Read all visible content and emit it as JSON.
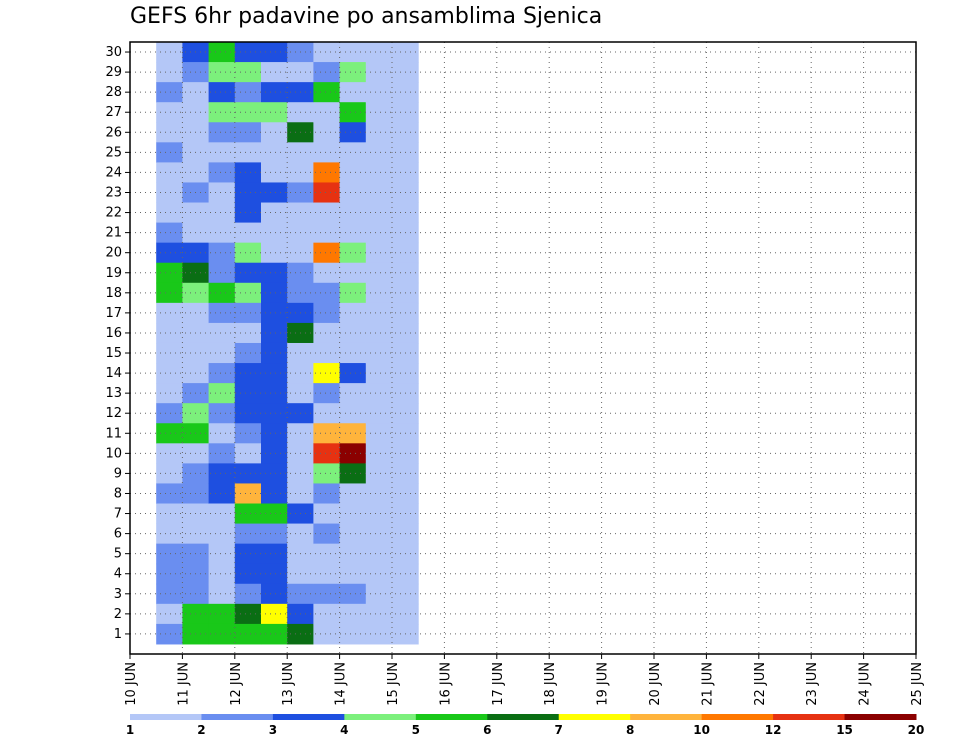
{
  "chart_data": {
    "type": "heatmap",
    "title": "GEFS 6hr padavine po ansamblima Sjenica",
    "xlabel": "",
    "ylabel": "",
    "y_members": [
      1,
      2,
      3,
      4,
      5,
      6,
      7,
      8,
      9,
      10,
      11,
      12,
      13,
      14,
      15,
      16,
      17,
      18,
      19,
      20,
      21,
      22,
      23,
      24,
      25,
      26,
      27,
      28,
      29,
      30
    ],
    "x_time_range_days": [
      0,
      15
    ],
    "x_step_hours": 6,
    "x_tick_labels": [
      "10 JUN",
      "11 JUN",
      "12 JUN",
      "13 JUN",
      "14 JUN",
      "15 JUN",
      "16 JUN",
      "17 JUN",
      "18 JUN",
      "19 JUN",
      "20 JUN",
      "21 JUN",
      "22 JUN",
      "23 JUN",
      "24 JUN",
      "25 JUN"
    ],
    "grid": true,
    "legend_placement": "bottom",
    "colorbar": {
      "labels": [
        "1",
        "2",
        "3",
        "4",
        "5",
        "6",
        "7",
        "8",
        "10",
        "12",
        "15",
        "20"
      ],
      "levels": [
        1,
        2,
        3,
        4,
        5,
        6,
        7,
        8,
        10,
        12,
        15,
        20
      ],
      "colors": [
        "#b4c7f7",
        "#6a8ef0",
        "#1e4fe0",
        "#7cf07c",
        "#19c819",
        "#0a6e14",
        "#ffff00",
        "#ffb43c",
        "#ff7800",
        "#e63212",
        "#8b0000"
      ]
    },
    "cells": [
      [
        1,
        30,
        1
      ],
      [
        1,
        29,
        1
      ],
      [
        1,
        28,
        2
      ],
      [
        1,
        27,
        1
      ],
      [
        1,
        26,
        1
      ],
      [
        1,
        25,
        2
      ],
      [
        1,
        24,
        1
      ],
      [
        1,
        23,
        1
      ],
      [
        1,
        22,
        1
      ],
      [
        1,
        21,
        2
      ],
      [
        1,
        20,
        3
      ],
      [
        1,
        19,
        5
      ],
      [
        1,
        18,
        5
      ],
      [
        1,
        17,
        1
      ],
      [
        1,
        16,
        1
      ],
      [
        1,
        15,
        1
      ],
      [
        1,
        14,
        1
      ],
      [
        1,
        13,
        1
      ],
      [
        1,
        12,
        2
      ],
      [
        1,
        11,
        5
      ],
      [
        1,
        10,
        1
      ],
      [
        1,
        9,
        1
      ],
      [
        1,
        8,
        2
      ],
      [
        1,
        7,
        1
      ],
      [
        1,
        6,
        1
      ],
      [
        1,
        5,
        2
      ],
      [
        1,
        4,
        2
      ],
      [
        1,
        3,
        2
      ],
      [
        1,
        2,
        1
      ],
      [
        1,
        1,
        2
      ],
      [
        2,
        30,
        3
      ],
      [
        2,
        29,
        2
      ],
      [
        2,
        28,
        1
      ],
      [
        2,
        27,
        1
      ],
      [
        2,
        26,
        1
      ],
      [
        2,
        25,
        1
      ],
      [
        2,
        24,
        1
      ],
      [
        2,
        23,
        2
      ],
      [
        2,
        22,
        1
      ],
      [
        2,
        21,
        1
      ],
      [
        2,
        20,
        3
      ],
      [
        2,
        19,
        6
      ],
      [
        2,
        18,
        4
      ],
      [
        2,
        17,
        1
      ],
      [
        2,
        16,
        1
      ],
      [
        2,
        15,
        1
      ],
      [
        2,
        14,
        1
      ],
      [
        2,
        13,
        2
      ],
      [
        2,
        12,
        4
      ],
      [
        2,
        11,
        5
      ],
      [
        2,
        10,
        1
      ],
      [
        2,
        9,
        2
      ],
      [
        2,
        8,
        2
      ],
      [
        2,
        7,
        1
      ],
      [
        2,
        6,
        1
      ],
      [
        2,
        5,
        2
      ],
      [
        2,
        4,
        2
      ],
      [
        2,
        3,
        2
      ],
      [
        2,
        2,
        5
      ],
      [
        2,
        1,
        5
      ],
      [
        3,
        30,
        5
      ],
      [
        3,
        29,
        4
      ],
      [
        3,
        28,
        3
      ],
      [
        3,
        27,
        4
      ],
      [
        3,
        26,
        2
      ],
      [
        3,
        25,
        1
      ],
      [
        3,
        24,
        2
      ],
      [
        3,
        23,
        1
      ],
      [
        3,
        22,
        1
      ],
      [
        3,
        21,
        1
      ],
      [
        3,
        20,
        2
      ],
      [
        3,
        19,
        2
      ],
      [
        3,
        18,
        5
      ],
      [
        3,
        17,
        2
      ],
      [
        3,
        16,
        1
      ],
      [
        3,
        15,
        1
      ],
      [
        3,
        14,
        2
      ],
      [
        3,
        13,
        4
      ],
      [
        3,
        12,
        2
      ],
      [
        3,
        11,
        1
      ],
      [
        3,
        10,
        2
      ],
      [
        3,
        9,
        3
      ],
      [
        3,
        8,
        3
      ],
      [
        3,
        7,
        1
      ],
      [
        3,
        6,
        1
      ],
      [
        3,
        5,
        1
      ],
      [
        3,
        4,
        1
      ],
      [
        3,
        3,
        1
      ],
      [
        3,
        2,
        5
      ],
      [
        3,
        1,
        5
      ],
      [
        4,
        30,
        3
      ],
      [
        4,
        29,
        4
      ],
      [
        4,
        28,
        2
      ],
      [
        4,
        27,
        4
      ],
      [
        4,
        26,
        2
      ],
      [
        4,
        25,
        1
      ],
      [
        4,
        24,
        3
      ],
      [
        4,
        23,
        3
      ],
      [
        4,
        22,
        3
      ],
      [
        4,
        21,
        1
      ],
      [
        4,
        20,
        4
      ],
      [
        4,
        19,
        3
      ],
      [
        4,
        18,
        4
      ],
      [
        4,
        17,
        2
      ],
      [
        4,
        16,
        1
      ],
      [
        4,
        15,
        2
      ],
      [
        4,
        14,
        3
      ],
      [
        4,
        13,
        3
      ],
      [
        4,
        12,
        3
      ],
      [
        4,
        11,
        2
      ],
      [
        4,
        10,
        1
      ],
      [
        4,
        9,
        3
      ],
      [
        4,
        8,
        8
      ],
      [
        4,
        7,
        5
      ],
      [
        4,
        6,
        2
      ],
      [
        4,
        5,
        3
      ],
      [
        4,
        4,
        3
      ],
      [
        4,
        3,
        2
      ],
      [
        4,
        2,
        6
      ],
      [
        4,
        1,
        5
      ],
      [
        5,
        30,
        3
      ],
      [
        5,
        29,
        1
      ],
      [
        5,
        28,
        3
      ],
      [
        5,
        27,
        4
      ],
      [
        5,
        26,
        1
      ],
      [
        5,
        25,
        1
      ],
      [
        5,
        24,
        1
      ],
      [
        5,
        23,
        3
      ],
      [
        5,
        22,
        1
      ],
      [
        5,
        21,
        1
      ],
      [
        5,
        20,
        1
      ],
      [
        5,
        19,
        3
      ],
      [
        5,
        18,
        3
      ],
      [
        5,
        17,
        3
      ],
      [
        5,
        16,
        3
      ],
      [
        5,
        15,
        3
      ],
      [
        5,
        14,
        3
      ],
      [
        5,
        13,
        3
      ],
      [
        5,
        12,
        3
      ],
      [
        5,
        11,
        3
      ],
      [
        5,
        10,
        3
      ],
      [
        5,
        9,
        3
      ],
      [
        5,
        8,
        3
      ],
      [
        5,
        7,
        5
      ],
      [
        5,
        6,
        2
      ],
      [
        5,
        5,
        3
      ],
      [
        5,
        4,
        3
      ],
      [
        5,
        3,
        3
      ],
      [
        5,
        2,
        7
      ],
      [
        5,
        1,
        5
      ],
      [
        6,
        30,
        2
      ],
      [
        6,
        29,
        1
      ],
      [
        6,
        28,
        3
      ],
      [
        6,
        27,
        1
      ],
      [
        6,
        26,
        6
      ],
      [
        6,
        25,
        1
      ],
      [
        6,
        24,
        1
      ],
      [
        6,
        23,
        2
      ],
      [
        6,
        22,
        1
      ],
      [
        6,
        21,
        1
      ],
      [
        6,
        20,
        1
      ],
      [
        6,
        19,
        2
      ],
      [
        6,
        18,
        2
      ],
      [
        6,
        17,
        3
      ],
      [
        6,
        16,
        6
      ],
      [
        6,
        15,
        1
      ],
      [
        6,
        14,
        1
      ],
      [
        6,
        13,
        1
      ],
      [
        6,
        12,
        3
      ],
      [
        6,
        11,
        1
      ],
      [
        6,
        10,
        1
      ],
      [
        6,
        9,
        1
      ],
      [
        6,
        8,
        1
      ],
      [
        6,
        7,
        3
      ],
      [
        6,
        6,
        1
      ],
      [
        6,
        5,
        1
      ],
      [
        6,
        4,
        1
      ],
      [
        6,
        3,
        2
      ],
      [
        6,
        2,
        3
      ],
      [
        6,
        1,
        6
      ],
      [
        7,
        30,
        1
      ],
      [
        7,
        29,
        2
      ],
      [
        7,
        28,
        5
      ],
      [
        7,
        27,
        1
      ],
      [
        7,
        26,
        1
      ],
      [
        7,
        25,
        1
      ],
      [
        7,
        24,
        10
      ],
      [
        7,
        23,
        12
      ],
      [
        7,
        22,
        1
      ],
      [
        7,
        21,
        1
      ],
      [
        7,
        20,
        10
      ],
      [
        7,
        19,
        1
      ],
      [
        7,
        18,
        2
      ],
      [
        7,
        17,
        2
      ],
      [
        7,
        16,
        1
      ],
      [
        7,
        15,
        1
      ],
      [
        7,
        14,
        7
      ],
      [
        7,
        13,
        2
      ],
      [
        7,
        12,
        1
      ],
      [
        7,
        11,
        8
      ],
      [
        7,
        10,
        12
      ],
      [
        7,
        9,
        4
      ],
      [
        7,
        8,
        2
      ],
      [
        7,
        7,
        1
      ],
      [
        7,
        6,
        2
      ],
      [
        7,
        5,
        1
      ],
      [
        7,
        4,
        1
      ],
      [
        7,
        3,
        2
      ],
      [
        7,
        2,
        1
      ],
      [
        7,
        1,
        1
      ],
      [
        8,
        30,
        1
      ],
      [
        8,
        29,
        4
      ],
      [
        8,
        28,
        1
      ],
      [
        8,
        27,
        5
      ],
      [
        8,
        26,
        3
      ],
      [
        8,
        25,
        1
      ],
      [
        8,
        24,
        1
      ],
      [
        8,
        23,
        1
      ],
      [
        8,
        22,
        1
      ],
      [
        8,
        21,
        1
      ],
      [
        8,
        20,
        4
      ],
      [
        8,
        19,
        1
      ],
      [
        8,
        18,
        4
      ],
      [
        8,
        17,
        1
      ],
      [
        8,
        16,
        1
      ],
      [
        8,
        15,
        1
      ],
      [
        8,
        14,
        3
      ],
      [
        8,
        13,
        1
      ],
      [
        8,
        12,
        1
      ],
      [
        8,
        11,
        8
      ],
      [
        8,
        10,
        15
      ],
      [
        8,
        9,
        6
      ],
      [
        8,
        8,
        1
      ],
      [
        8,
        7,
        1
      ],
      [
        8,
        6,
        1
      ],
      [
        8,
        5,
        1
      ],
      [
        8,
        4,
        1
      ],
      [
        8,
        3,
        2
      ],
      [
        8,
        2,
        1
      ],
      [
        8,
        1,
        1
      ],
      [
        9,
        30,
        1
      ],
      [
        9,
        29,
        1
      ],
      [
        9,
        28,
        1
      ],
      [
        9,
        27,
        1
      ],
      [
        9,
        26,
        1
      ],
      [
        9,
        25,
        1
      ],
      [
        9,
        24,
        1
      ],
      [
        9,
        23,
        1
      ],
      [
        9,
        22,
        1
      ],
      [
        9,
        21,
        1
      ],
      [
        9,
        20,
        1
      ],
      [
        9,
        19,
        1
      ],
      [
        9,
        18,
        1
      ],
      [
        9,
        17,
        1
      ],
      [
        9,
        16,
        1
      ],
      [
        9,
        15,
        1
      ],
      [
        9,
        14,
        1
      ],
      [
        9,
        13,
        1
      ],
      [
        9,
        12,
        1
      ],
      [
        9,
        11,
        1
      ],
      [
        9,
        10,
        1
      ],
      [
        9,
        9,
        1
      ],
      [
        9,
        8,
        1
      ],
      [
        9,
        7,
        1
      ],
      [
        9,
        6,
        1
      ],
      [
        9,
        5,
        1
      ],
      [
        9,
        4,
        1
      ],
      [
        9,
        3,
        1
      ],
      [
        9,
        2,
        1
      ],
      [
        9,
        1,
        1
      ],
      [
        10,
        30,
        1
      ],
      [
        10,
        29,
        1
      ],
      [
        10,
        28,
        1
      ],
      [
        10,
        27,
        1
      ],
      [
        10,
        26,
        1
      ],
      [
        10,
        25,
        1
      ],
      [
        10,
        24,
        1
      ],
      [
        10,
        23,
        1
      ],
      [
        10,
        22,
        1
      ],
      [
        10,
        21,
        1
      ],
      [
        10,
        20,
        1
      ],
      [
        10,
        19,
        1
      ],
      [
        10,
        18,
        1
      ],
      [
        10,
        17,
        1
      ],
      [
        10,
        16,
        1
      ],
      [
        10,
        15,
        1
      ],
      [
        10,
        14,
        1
      ],
      [
        10,
        13,
        1
      ],
      [
        10,
        12,
        1
      ],
      [
        10,
        11,
        1
      ],
      [
        10,
        10,
        1
      ],
      [
        10,
        9,
        1
      ],
      [
        10,
        8,
        1
      ],
      [
        10,
        7,
        1
      ],
      [
        10,
        6,
        1
      ],
      [
        10,
        5,
        1
      ],
      [
        10,
        4,
        1
      ],
      [
        10,
        3,
        1
      ],
      [
        10,
        2,
        1
      ],
      [
        10,
        1,
        1
      ]
    ]
  }
}
